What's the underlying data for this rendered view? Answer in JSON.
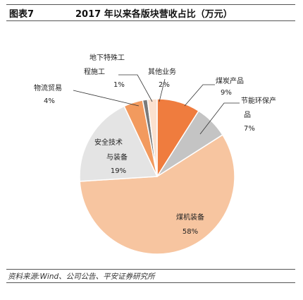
{
  "figure": {
    "label": "图表7",
    "title": "2017 年以来各版块营收占比（万元）",
    "source": "资料来源:Wind、公司公告、平安证券研究所"
  },
  "chart_data": {
    "type": "pie",
    "title": "2017 年以来各版块营收占比（万元）",
    "slices": [
      {
        "label": "煤炭产品",
        "value": 9,
        "display": "9%",
        "color": "#ef7c3e"
      },
      {
        "label": "节能环保产品",
        "value": 7,
        "display": "7%",
        "color": "#c4c4c4"
      },
      {
        "label": "煤机装备",
        "value": 58,
        "display": "58%",
        "color": "#f7c5a0"
      },
      {
        "label": "安全技术与装备",
        "value": 19,
        "display": "19%",
        "color": "#e4e4e4"
      },
      {
        "label": "物流贸易",
        "value": 4,
        "display": "4%",
        "color": "#f29a5e"
      },
      {
        "label": "地下特殊工程施工",
        "value": 1,
        "display": "1%",
        "color": "#7a7a7a"
      },
      {
        "label": "其他业务",
        "value": 2,
        "display": "2%",
        "color": "#fbe1cf"
      }
    ]
  }
}
